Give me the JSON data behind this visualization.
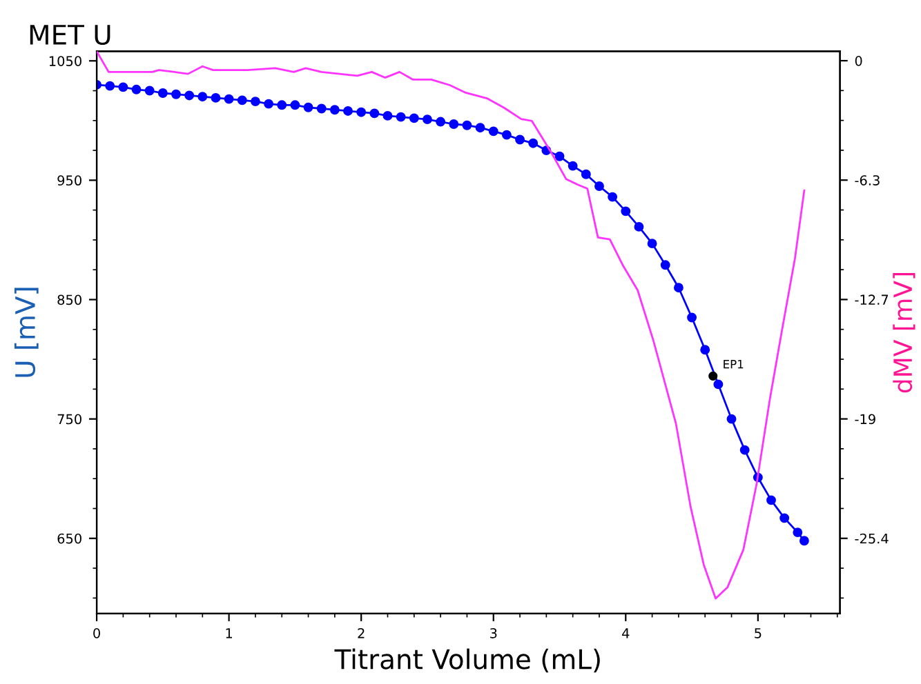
{
  "chart_data": {
    "type": "line",
    "title": "MET U",
    "xlabel": "Titrant Volume (mL)",
    "ylabel": "U [mV]",
    "y2label": "dMV [mV]",
    "xlim": [
      0,
      5.62
    ],
    "xticks": [
      0,
      1,
      2,
      3,
      4,
      5
    ],
    "ylim": [
      587,
      1058
    ],
    "yticks": [
      650,
      750,
      850,
      950,
      1050
    ],
    "y2lim": [
      -29.4,
      0.5
    ],
    "y2ticks": [
      {
        "value": -25.4,
        "label": "-25.4"
      },
      {
        "value": -19.05,
        "label": "-19"
      },
      {
        "value": -12.7,
        "label": "-12.7"
      },
      {
        "value": -6.35,
        "label": "-6.3"
      },
      {
        "value": 0,
        "label": "0"
      }
    ],
    "grid": false,
    "legend": false,
    "annotations": [
      {
        "text": "EP1",
        "x": 4.66,
        "y": 786
      }
    ],
    "series": [
      {
        "color": "#0000ff",
        "marker": "circle",
        "x": [
          0,
          0.1,
          0.2,
          0.3,
          0.4,
          0.5,
          0.6,
          0.7,
          0.8,
          0.9,
          1.0,
          1.1,
          1.2,
          1.3,
          1.4,
          1.5,
          1.6,
          1.7,
          1.8,
          1.9,
          2.0,
          2.1,
          2.2,
          2.3,
          2.4,
          2.5,
          2.6,
          2.7,
          2.8,
          2.9,
          3.0,
          3.1,
          3.2,
          3.3,
          3.4,
          3.5,
          3.6,
          3.7,
          3.8,
          3.9,
          4.0,
          4.1,
          4.2,
          4.3,
          4.4,
          4.5,
          4.6,
          4.7,
          4.8,
          4.9,
          5.0,
          5.1,
          5.2,
          5.3,
          5.35
        ],
        "values": [
          1030,
          1029,
          1028,
          1026,
          1025,
          1023,
          1022,
          1021,
          1020,
          1019,
          1018,
          1017,
          1016,
          1014,
          1013,
          1013,
          1011,
          1010,
          1009,
          1008,
          1007,
          1006,
          1004,
          1003,
          1002,
          1001,
          999,
          997,
          996,
          994,
          991,
          988,
          984,
          981,
          975,
          970,
          962,
          955,
          945,
          936,
          924,
          911,
          897,
          879,
          860,
          835,
          808,
          779,
          750,
          724,
          701,
          682,
          667,
          655,
          648
        ]
      },
      {
        "type": "scatter",
        "color": "#000000",
        "marker": "circle",
        "x": [
          4.66
        ],
        "values": [
          786
        ]
      },
      {
        "axis": "y2",
        "color": "#ff33ff",
        "marker": "none",
        "x": [
          0,
          0.09,
          0.42,
          0.47,
          0.59,
          0.69,
          0.8,
          0.88,
          1.14,
          1.35,
          1.49,
          1.58,
          1.7,
          1.97,
          2.08,
          2.18,
          2.29,
          2.39,
          2.53,
          2.67,
          2.79,
          2.95,
          3.08,
          3.21,
          3.29,
          3.43,
          3.55,
          3.64,
          3.71,
          3.79,
          3.88,
          3.98,
          4.09,
          4.21,
          4.38,
          4.49,
          4.59,
          4.68,
          4.77,
          4.89,
          4.99,
          5.09,
          5.18,
          5.28,
          5.35
        ],
        "values": [
          0.5,
          -0.6,
          -0.6,
          -0.5,
          -0.6,
          -0.7,
          -0.3,
          -0.5,
          -0.5,
          -0.4,
          -0.6,
          -0.4,
          -0.6,
          -0.8,
          -0.6,
          -0.9,
          -0.6,
          -1.0,
          -1.0,
          -1.3,
          -1.7,
          -2.0,
          -2.5,
          -3.1,
          -3.2,
          -4.8,
          -6.3,
          -6.6,
          -6.8,
          -9.4,
          -9.5,
          -10.9,
          -12.2,
          -14.9,
          -19.3,
          -23.7,
          -26.8,
          -28.6,
          -28.0,
          -26.0,
          -22.5,
          -18.0,
          -14.4,
          -10.5,
          -6.9
        ]
      }
    ]
  }
}
